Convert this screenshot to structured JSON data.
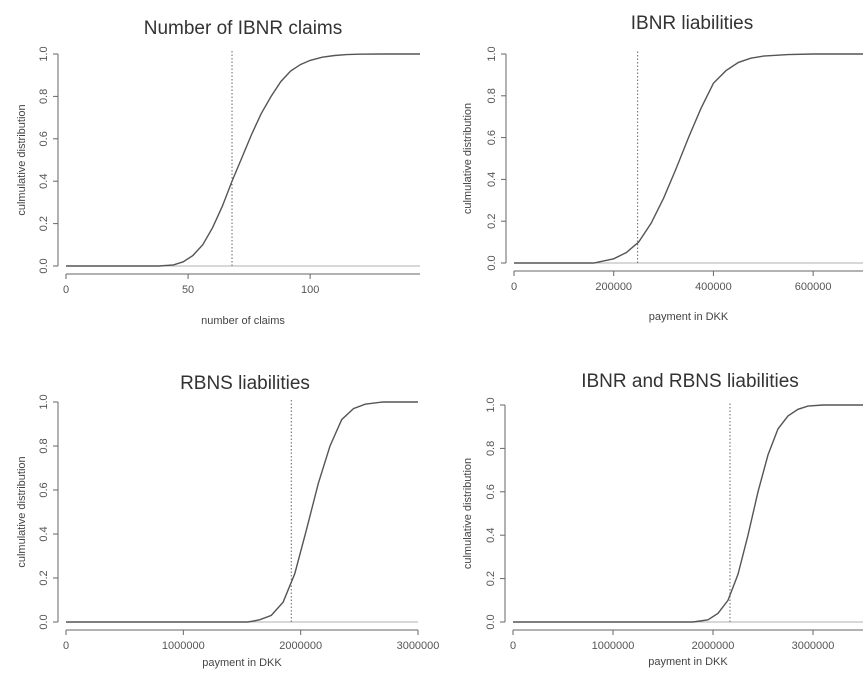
{
  "chart_data": [
    {
      "type": "line",
      "title": "Number of IBNR claims",
      "xlabel": "number of claims",
      "ylabel": "culmulative distribution",
      "xlim": [
        0,
        145
      ],
      "ylim": [
        0,
        1
      ],
      "x_ticks": [
        0,
        50,
        100
      ],
      "x_tick_labels": [
        "0",
        "50",
        "100"
      ],
      "y_ticks": [
        0,
        0.2,
        0.4,
        0.6,
        0.8,
        1.0
      ],
      "y_tick_labels": [
        "0.0",
        "0.2",
        "0.4",
        "0.6",
        "0.8",
        "1.0"
      ],
      "reference_line_x": 68,
      "series": [
        {
          "x": [
            0,
            38,
            44,
            48,
            52,
            56,
            60,
            64,
            68,
            72,
            76,
            80,
            84,
            88,
            92,
            96,
            100,
            105,
            110,
            115,
            120,
            130,
            145
          ],
          "y": [
            0,
            0,
            0.005,
            0.02,
            0.05,
            0.1,
            0.18,
            0.28,
            0.4,
            0.51,
            0.62,
            0.72,
            0.8,
            0.87,
            0.92,
            0.95,
            0.97,
            0.985,
            0.993,
            0.997,
            0.999,
            1.0,
            1.0
          ]
        }
      ]
    },
    {
      "type": "line",
      "title": "IBNR liabilities",
      "xlabel": "payment in DKK",
      "ylabel": "culmulative distribution",
      "xlim": [
        0,
        700000
      ],
      "ylim": [
        0,
        1
      ],
      "x_ticks": [
        0,
        200000,
        400000,
        600000
      ],
      "x_tick_labels": [
        "0",
        "200000",
        "400000",
        "600000"
      ],
      "y_ticks": [
        0,
        0.2,
        0.4,
        0.6,
        0.8,
        1.0
      ],
      "y_tick_labels": [
        "0.0",
        "0.2",
        "0.4",
        "0.6",
        "0.8",
        "1.0"
      ],
      "reference_line_x": 248000,
      "series": [
        {
          "x": [
            0,
            160000,
            180000,
            200000,
            225000,
            250000,
            275000,
            300000,
            325000,
            350000,
            375000,
            400000,
            425000,
            450000,
            475000,
            500000,
            550000,
            600000,
            700000
          ],
          "y": [
            0,
            0,
            0.01,
            0.02,
            0.05,
            0.1,
            0.19,
            0.31,
            0.45,
            0.6,
            0.74,
            0.86,
            0.92,
            0.96,
            0.98,
            0.99,
            0.997,
            1.0,
            1.0
          ]
        }
      ]
    },
    {
      "type": "line",
      "title": "RBNS liabilities",
      "xlabel": "payment in DKK",
      "ylabel": "culmulative distribution",
      "xlim": [
        0,
        3000000
      ],
      "ylim": [
        0,
        1
      ],
      "x_ticks": [
        0,
        1000000,
        2000000,
        3000000
      ],
      "x_tick_labels": [
        "0",
        "1000000",
        "2000000",
        "3000000"
      ],
      "y_ticks": [
        0,
        0.2,
        0.4,
        0.6,
        0.8,
        1.0
      ],
      "y_tick_labels": [
        "0.0",
        "0.2",
        "0.4",
        "0.6",
        "0.8",
        "1.0"
      ],
      "reference_line_x": 1920000,
      "series": [
        {
          "x": [
            0,
            1550000,
            1650000,
            1750000,
            1850000,
            1950000,
            2050000,
            2150000,
            2250000,
            2350000,
            2450000,
            2550000,
            2700000,
            3000000
          ],
          "y": [
            0,
            0,
            0.01,
            0.03,
            0.09,
            0.22,
            0.42,
            0.63,
            0.8,
            0.92,
            0.97,
            0.99,
            1.0,
            1.0
          ]
        }
      ]
    },
    {
      "type": "line",
      "title": "IBNR and RBNS liabilities",
      "xlabel": "payment in DKK",
      "ylabel": "culmulative distribution",
      "xlim": [
        0,
        3500000
      ],
      "ylim": [
        0,
        1
      ],
      "x_ticks": [
        0,
        1000000,
        2000000,
        3000000
      ],
      "x_tick_labels": [
        "0",
        "1000000",
        "2000000",
        "3000000"
      ],
      "y_ticks": [
        0,
        0.2,
        0.4,
        0.6,
        0.8,
        1.0
      ],
      "y_tick_labels": [
        "0.0",
        "0.2",
        "0.4",
        "0.6",
        "0.8",
        "1.0"
      ],
      "reference_line_x": 2170000,
      "series": [
        {
          "x": [
            0,
            1800000,
            1950000,
            2050000,
            2150000,
            2250000,
            2350000,
            2450000,
            2550000,
            2650000,
            2750000,
            2850000,
            2950000,
            3100000,
            3500000
          ],
          "y": [
            0,
            0,
            0.01,
            0.04,
            0.1,
            0.22,
            0.4,
            0.6,
            0.77,
            0.89,
            0.95,
            0.98,
            0.995,
            1.0,
            1.0
          ]
        }
      ]
    }
  ]
}
